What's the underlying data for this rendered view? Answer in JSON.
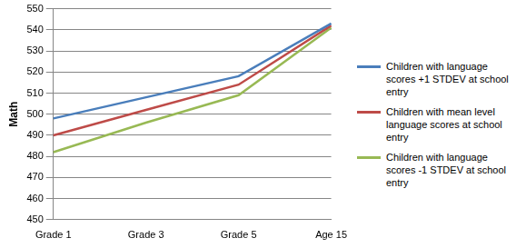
{
  "chart_data": {
    "type": "line",
    "y_label": "Math",
    "categories": [
      "Grade 1",
      "Grade 3",
      "Grade 5",
      "Age 15"
    ],
    "series": [
      {
        "name": "Children with language scores +1 STDEV at school entry",
        "color": "#4a7ebb",
        "values": [
          498,
          508,
          518,
          543
        ]
      },
      {
        "name": "Children  with mean level language scores at school entry",
        "color": "#be4b48",
        "values": [
          490,
          502,
          514,
          542
        ]
      },
      {
        "name": "Children with language scores -1 STDEV at school entry",
        "color": "#98b954",
        "values": [
          482,
          496,
          509,
          541
        ]
      }
    ],
    "ylim": [
      450,
      550
    ],
    "yticks": [
      450,
      460,
      470,
      480,
      490,
      500,
      510,
      520,
      530,
      540,
      550
    ],
    "grid": true,
    "legend": "right"
  }
}
